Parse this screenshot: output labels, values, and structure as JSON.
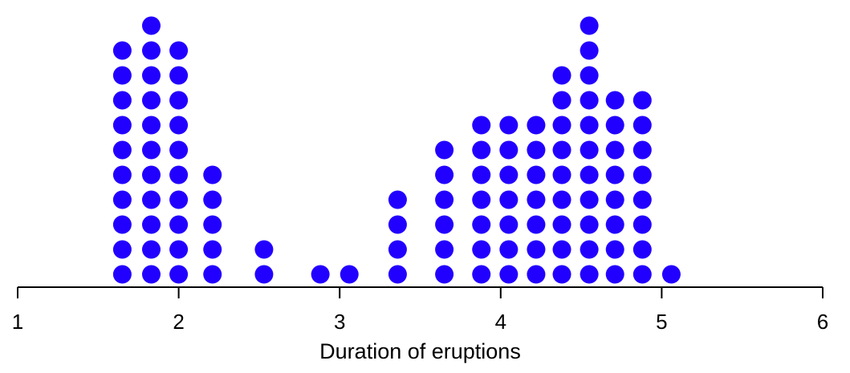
{
  "chart_data": {
    "type": "dotplot",
    "xlabel": "Duration of eruptions",
    "xlim": [
      1,
      6
    ],
    "xticks": [
      1,
      2,
      3,
      4,
      5,
      6
    ],
    "dot_color": "#2200ff",
    "stacks": [
      {
        "x": 1.65,
        "count": 10
      },
      {
        "x": 1.83,
        "count": 11
      },
      {
        "x": 2.0,
        "count": 10
      },
      {
        "x": 2.21,
        "count": 5
      },
      {
        "x": 2.53,
        "count": 2
      },
      {
        "x": 2.88,
        "count": 1
      },
      {
        "x": 3.06,
        "count": 1
      },
      {
        "x": 3.36,
        "count": 4
      },
      {
        "x": 3.65,
        "count": 6
      },
      {
        "x": 3.88,
        "count": 7
      },
      {
        "x": 4.05,
        "count": 7
      },
      {
        "x": 4.22,
        "count": 7
      },
      {
        "x": 4.38,
        "count": 9
      },
      {
        "x": 4.55,
        "count": 11
      },
      {
        "x": 4.71,
        "count": 8
      },
      {
        "x": 4.88,
        "count": 8
      },
      {
        "x": 5.06,
        "count": 1
      }
    ]
  }
}
